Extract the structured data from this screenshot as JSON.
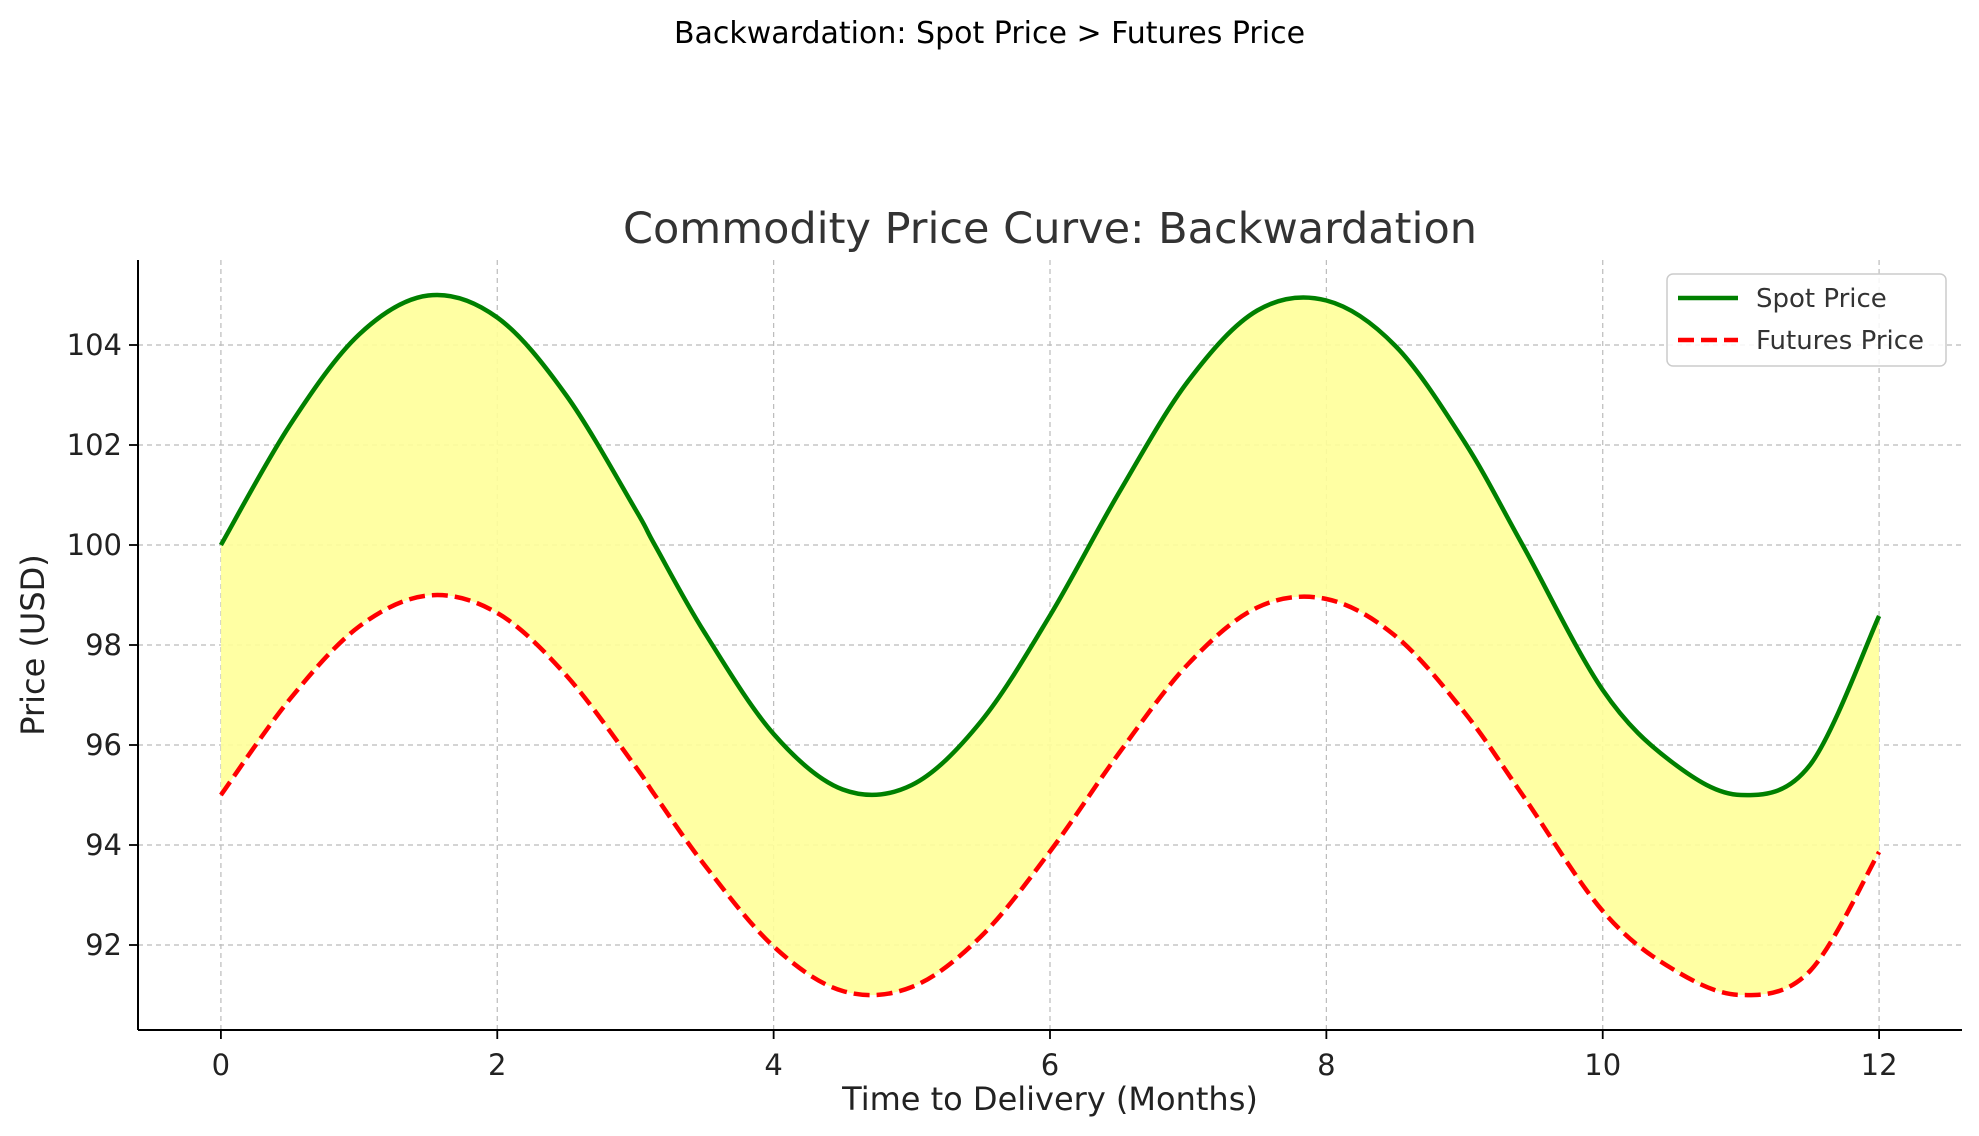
{
  "figure_title": "Backwardation: Spot Price > Futures Price",
  "chart_data": {
    "type": "line",
    "title": "Commodity Price Curve: Backwardation",
    "xlabel": "Time to Delivery (Months)",
    "ylabel": "Price (USD)",
    "xlim": [
      -0.6,
      12.6
    ],
    "ylim": [
      90.3,
      105.7
    ],
    "xticks": [
      0,
      2,
      4,
      6,
      8,
      10,
      12
    ],
    "yticks": [
      92,
      94,
      96,
      98,
      100,
      102,
      104
    ],
    "x": [
      0,
      0.5,
      1,
      1.5,
      2,
      2.5,
      3,
      3.14,
      3.5,
      4,
      4.5,
      5,
      5.5,
      6,
      6.5,
      7,
      7.5,
      8,
      8.5,
      9,
      9.42,
      10,
      10.5,
      11,
      11.5,
      12
    ],
    "series": [
      {
        "name": "Spot Price",
        "color": "#008000",
        "style": "solid",
        "values": [
          100.0,
          102.4,
          104.21,
          104.99,
          104.55,
          102.99,
          100.71,
          100.0,
          98.25,
          96.22,
          95.11,
          95.2,
          96.47,
          98.59,
          101.05,
          103.28,
          104.69,
          104.89,
          103.98,
          102.06,
          100.0,
          97.1,
          95.66,
          95.0,
          95.6,
          98.58
        ]
      },
      {
        "name": "Futures Price",
        "color": "#ff0000",
        "style": "dashed",
        "values": [
          95.0,
          96.92,
          98.37,
          98.99,
          98.64,
          97.39,
          95.57,
          95.0,
          93.6,
          91.97,
          91.08,
          91.16,
          92.17,
          93.87,
          95.84,
          97.62,
          98.75,
          98.92,
          98.18,
          96.65,
          95.0,
          92.68,
          91.53,
          91.0,
          91.48,
          93.86
        ]
      }
    ],
    "fill_between": {
      "color": "#ffff99",
      "between": [
        "Spot Price",
        "Futures Price"
      ]
    },
    "grid": true,
    "legend_position": "top-right"
  }
}
